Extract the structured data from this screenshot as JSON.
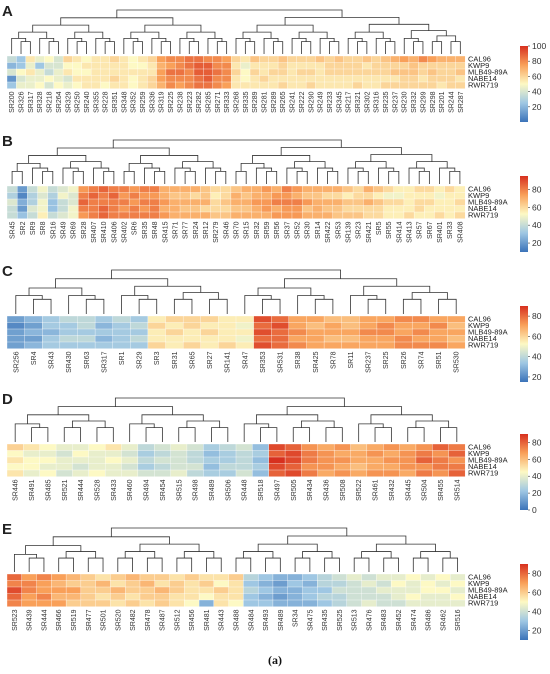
{
  "figure": {
    "caption": "(a)"
  },
  "chart_data": [
    {
      "type": "heatmap",
      "panel_label": "A",
      "rows": [
        "CAL96",
        "KWP9",
        "MLB49-89A",
        "NABE14",
        "RWR719"
      ],
      "columns": [
        "SR200",
        "SR326",
        "SR317",
        "SR328",
        "SR218",
        "SR264",
        "SR329",
        "SR250",
        "SR240",
        "SR355",
        "SR228",
        "SR351",
        "SR348",
        "SR352",
        "SR259",
        "SR336",
        "SR319",
        "SR225",
        "SR238",
        "SR223",
        "SR282",
        "SR285",
        "SR271",
        "SR333",
        "SR268",
        "SR335",
        "SR289",
        "SR281",
        "SR289",
        "SR265",
        "SR241",
        "SR222",
        "SR290",
        "SR249",
        "SR233",
        "SR345",
        "SR217",
        "SR321",
        "SR302",
        "SR316",
        "SR235",
        "SR237",
        "SR230",
        "SR332",
        "SR299",
        "SR298",
        "SR201",
        "SR244",
        "SR287"
      ],
      "colorbar": {
        "ticks": [
          100,
          80,
          60,
          40,
          20
        ],
        "min": 0,
        "max": 100
      },
      "values": [
        [
          35,
          25,
          55,
          45,
          50,
          40,
          60,
          55,
          50,
          55,
          55,
          60,
          55,
          50,
          55,
          60,
          75,
          80,
          80,
          85,
          85,
          80,
          80,
          75,
          60,
          55,
          65,
          60,
          60,
          65,
          60,
          60,
          60,
          65,
          60,
          65,
          60,
          60,
          65,
          60,
          65,
          70,
          75,
          70,
          80,
          75,
          70,
          70,
          70
        ],
        [
          20,
          25,
          45,
          25,
          40,
          40,
          50,
          50,
          55,
          55,
          55,
          55,
          55,
          50,
          50,
          55,
          70,
          75,
          80,
          85,
          90,
          90,
          80,
          80,
          55,
          45,
          55,
          55,
          55,
          60,
          55,
          55,
          55,
          55,
          60,
          60,
          60,
          60,
          55,
          60,
          60,
          60,
          60,
          65,
          60,
          60,
          60,
          60,
          60
        ],
        [
          40,
          50,
          55,
          45,
          35,
          45,
          55,
          50,
          50,
          55,
          55,
          55,
          55,
          55,
          55,
          55,
          75,
          85,
          85,
          80,
          90,
          90,
          85,
          80,
          60,
          50,
          60,
          55,
          60,
          60,
          55,
          60,
          60,
          55,
          60,
          60,
          60,
          60,
          60,
          60,
          60,
          65,
          65,
          65,
          60,
          65,
          60,
          60,
          65
        ],
        [
          10,
          40,
          45,
          45,
          50,
          45,
          40,
          55,
          55,
          55,
          55,
          60,
          55,
          50,
          55,
          60,
          75,
          80,
          80,
          80,
          85,
          90,
          80,
          80,
          55,
          50,
          55,
          60,
          55,
          55,
          55,
          55,
          55,
          55,
          55,
          55,
          55,
          55,
          55,
          55,
          55,
          55,
          60,
          60,
          55,
          60,
          60,
          60,
          55
        ],
        [
          25,
          45,
          45,
          50,
          40,
          50,
          45,
          50,
          55,
          55,
          50,
          55,
          55,
          50,
          55,
          60,
          70,
          80,
          75,
          80,
          85,
          85,
          80,
          75,
          55,
          55,
          55,
          55,
          55,
          60,
          55,
          55,
          60,
          55,
          55,
          55,
          55,
          60,
          55,
          55,
          60,
          60,
          60,
          60,
          60,
          60,
          55,
          60,
          60
        ]
      ]
    },
    {
      "type": "heatmap",
      "panel_label": "B",
      "rows": [
        "CAL96",
        "KWP9",
        "MLB49-89A",
        "NABE14",
        "RWR719"
      ],
      "columns": [
        "SR45",
        "SR2",
        "SR9",
        "SR8",
        "SR16",
        "SR49",
        "SR69",
        "SR28",
        "SR407",
        "SR410",
        "SR406",
        "SR402",
        "SR6",
        "SR35",
        "SR48",
        "SR415",
        "SR71",
        "SR77",
        "SR24",
        "SR12",
        "SR279",
        "SR46",
        "SR70",
        "SR15",
        "SR32",
        "SR59",
        "SR56",
        "SR37",
        "SR52",
        "SR30",
        "SR14",
        "SR422",
        "SR53",
        "SR139",
        "SR23",
        "SR421",
        "SR5",
        "SR55",
        "SR414",
        "SR413",
        "SR57",
        "SR67",
        "SR401",
        "SR33",
        "SR408"
      ],
      "colorbar": {
        "ticks": [
          80,
          60,
          40,
          20
        ],
        "min": 10,
        "max": 95
      },
      "values": [
        [
          40,
          20,
          40,
          50,
          40,
          45,
          50,
          75,
          80,
          85,
          80,
          80,
          75,
          80,
          80,
          70,
          70,
          70,
          70,
          65,
          60,
          60,
          65,
          70,
          70,
          75,
          70,
          80,
          75,
          70,
          70,
          70,
          70,
          65,
          60,
          70,
          65,
          60,
          55,
          55,
          60,
          60,
          55,
          60,
          55
        ],
        [
          35,
          15,
          35,
          45,
          35,
          50,
          45,
          80,
          85,
          80,
          85,
          75,
          80,
          75,
          75,
          70,
          65,
          65,
          60,
          65,
          55,
          60,
          70,
          65,
          70,
          70,
          75,
          75,
          70,
          65,
          65,
          60,
          60,
          55,
          60,
          60,
          55,
          50,
          50,
          55,
          55,
          55,
          50,
          55,
          55
        ],
        [
          45,
          25,
          35,
          50,
          30,
          40,
          45,
          85,
          80,
          80,
          80,
          80,
          75,
          80,
          80,
          75,
          70,
          70,
          70,
          70,
          60,
          65,
          70,
          70,
          75,
          75,
          80,
          80,
          80,
          75,
          70,
          70,
          70,
          65,
          65,
          70,
          65,
          60,
          60,
          55,
          60,
          60,
          55,
          55,
          60
        ],
        [
          40,
          20,
          45,
          50,
          30,
          40,
          50,
          80,
          80,
          85,
          80,
          75,
          80,
          75,
          80,
          70,
          70,
          65,
          65,
          60,
          60,
          60,
          65,
          65,
          70,
          75,
          70,
          75,
          75,
          65,
          70,
          65,
          65,
          60,
          60,
          60,
          60,
          55,
          55,
          55,
          60,
          55,
          55,
          55,
          55
        ],
        [
          40,
          30,
          40,
          55,
          40,
          45,
          50,
          75,
          80,
          85,
          80,
          80,
          80,
          80,
          80,
          75,
          70,
          70,
          70,
          70,
          65,
          65,
          70,
          70,
          70,
          70,
          75,
          75,
          75,
          70,
          70,
          70,
          65,
          65,
          65,
          60,
          60,
          55,
          55,
          60,
          55,
          55,
          60,
          55,
          60
        ]
      ]
    },
    {
      "type": "heatmap",
      "panel_label": "C",
      "rows": [
        "CAL96",
        "KWP9",
        "MLB49-89A",
        "NABE14",
        "RWR719"
      ],
      "columns": [
        "SR256",
        "SR4",
        "SR43",
        "SR430",
        "SR63",
        "SR317",
        "SR1",
        "SR29",
        "SR3",
        "SR31",
        "SR65",
        "SR27",
        "SR141",
        "SR47",
        "SR353",
        "SR531",
        "SR38",
        "SR425",
        "SR78",
        "SR11",
        "SR237",
        "SR25",
        "SR26",
        "SR74",
        "SR51",
        "SR530"
      ],
      "colorbar": {
        "ticks": [
          80,
          60,
          40,
          20
        ],
        "min": 15,
        "max": 90
      },
      "values": [
        [
          25,
          30,
          35,
          40,
          40,
          35,
          40,
          35,
          55,
          60,
          60,
          60,
          55,
          55,
          85,
          80,
          70,
          70,
          65,
          65,
          70,
          70,
          75,
          75,
          70,
          70
        ],
        [
          20,
          25,
          35,
          35,
          40,
          30,
          35,
          40,
          60,
          55,
          60,
          55,
          55,
          50,
          80,
          85,
          70,
          65,
          70,
          65,
          70,
          75,
          70,
          70,
          75,
          65
        ],
        [
          25,
          30,
          30,
          35,
          35,
          35,
          35,
          35,
          55,
          60,
          55,
          60,
          55,
          55,
          85,
          80,
          75,
          70,
          70,
          70,
          75,
          75,
          70,
          75,
          70,
          70
        ],
        [
          25,
          25,
          35,
          40,
          40,
          30,
          35,
          40,
          55,
          55,
          55,
          55,
          55,
          50,
          80,
          80,
          70,
          70,
          65,
          65,
          70,
          70,
          75,
          70,
          70,
          65
        ],
        [
          25,
          30,
          35,
          35,
          35,
          35,
          35,
          35,
          60,
          55,
          60,
          55,
          60,
          55,
          85,
          80,
          75,
          70,
          70,
          70,
          70,
          70,
          75,
          75,
          75,
          70
        ]
      ]
    },
    {
      "type": "heatmap",
      "panel_label": "D",
      "rows": [
        "CAL96",
        "KWP9",
        "MLB49-89A",
        "NABE14",
        "RWR719"
      ],
      "columns": [
        "SR446",
        "SR491",
        "SR485",
        "SR521",
        "SR444",
        "SR528",
        "SR433",
        "SR460",
        "SR494",
        "SR454",
        "SR515",
        "SR498",
        "SR489",
        "SR506",
        "SR448",
        "SR518",
        "SR497",
        "SR505",
        "SR434",
        "SR436",
        "SR508",
        "SR522",
        "SR461",
        "SR432",
        "SR445",
        "SR504",
        "SR455",
        "SR514"
      ],
      "colorbar": {
        "ticks": [
          80,
          60,
          40,
          20,
          0
        ],
        "min": 0,
        "max": 90
      },
      "values": [
        [
          55,
          50,
          45,
          40,
          40,
          45,
          50,
          40,
          30,
          35,
          40,
          35,
          25,
          30,
          35,
          20,
          85,
          80,
          70,
          65,
          70,
          60,
          65,
          70,
          65,
          70,
          80,
          75
        ],
        [
          45,
          40,
          40,
          35,
          45,
          40,
          40,
          35,
          25,
          30,
          35,
          30,
          20,
          25,
          30,
          25,
          80,
          85,
          75,
          70,
          65,
          65,
          70,
          65,
          70,
          75,
          70,
          80
        ],
        [
          50,
          45,
          45,
          40,
          40,
          40,
          45,
          40,
          30,
          35,
          35,
          30,
          25,
          25,
          30,
          20,
          90,
          85,
          75,
          70,
          70,
          65,
          65,
          70,
          70,
          80,
          75,
          70
        ],
        [
          45,
          45,
          40,
          40,
          35,
          40,
          40,
          35,
          25,
          30,
          35,
          35,
          20,
          30,
          30,
          25,
          85,
          80,
          70,
          70,
          65,
          60,
          65,
          65,
          70,
          70,
          75,
          75
        ],
        [
          50,
          40,
          45,
          35,
          40,
          45,
          40,
          40,
          35,
          35,
          40,
          30,
          25,
          25,
          35,
          20,
          80,
          85,
          75,
          65,
          70,
          65,
          70,
          70,
          65,
          75,
          70,
          80
        ]
      ]
    },
    {
      "type": "heatmap",
      "panel_label": "E",
      "rows": [
        "CAL96",
        "KWP9",
        "MLB49-89A",
        "NABE14",
        "RWR719"
      ],
      "columns": [
        "SR523",
        "SR439",
        "SR444",
        "SR466",
        "SR519",
        "SR477",
        "SR501",
        "SR520",
        "SR482",
        "SR478",
        "SR487",
        "SR512",
        "SR456",
        "SR481",
        "SR443",
        "SR488",
        "SR484",
        "SR493",
        "SR489",
        "SR34",
        "SR475",
        "SR435",
        "SR525",
        "SR513",
        "SR476",
        "SR483",
        "SR452",
        "SR474",
        "SR486",
        "SR462",
        "SR516"
      ],
      "colorbar": {
        "ticks": [
          80,
          60,
          40,
          20
        ],
        "min": 10,
        "max": 90
      },
      "values": [
        [
          80,
          70,
          75,
          70,
          65,
          60,
          55,
          60,
          65,
          60,
          60,
          55,
          60,
          55,
          55,
          60,
          35,
          30,
          25,
          25,
          30,
          35,
          40,
          45,
          40,
          45,
          45,
          50,
          45,
          50,
          45
        ],
        [
          75,
          75,
          70,
          65,
          60,
          60,
          65,
          55,
          60,
          65,
          55,
          60,
          55,
          60,
          50,
          55,
          30,
          25,
          20,
          30,
          25,
          35,
          35,
          40,
          45,
          40,
          50,
          45,
          50,
          45,
          50
        ],
        [
          85,
          75,
          70,
          70,
          70,
          60,
          60,
          65,
          60,
          60,
          65,
          60,
          55,
          55,
          60,
          55,
          35,
          30,
          25,
          25,
          30,
          30,
          40,
          40,
          40,
          45,
          45,
          45,
          50,
          50,
          45
        ],
        [
          80,
          70,
          75,
          65,
          65,
          60,
          55,
          60,
          55,
          60,
          60,
          55,
          55,
          50,
          55,
          55,
          30,
          25,
          20,
          25,
          30,
          35,
          35,
          40,
          40,
          40,
          45,
          50,
          45,
          45,
          50
        ],
        [
          75,
          70,
          70,
          70,
          60,
          60,
          60,
          55,
          60,
          55,
          60,
          55,
          50,
          25,
          55,
          50,
          30,
          30,
          25,
          25,
          25,
          30,
          35,
          40,
          45,
          40,
          40,
          45,
          45,
          45,
          45
        ]
      ]
    }
  ]
}
